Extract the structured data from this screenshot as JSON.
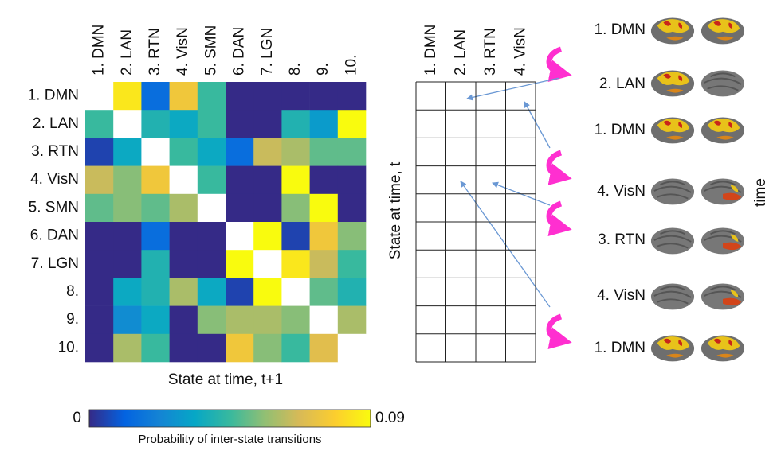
{
  "chart_data": {
    "type": "heatmap",
    "row_labels": [
      "1. DMN",
      "2. LAN",
      "3. RTN",
      "4. VisN",
      "5. SMN",
      "6. DAN",
      "7. LGN",
      "8.",
      "9.",
      "10."
    ],
    "column_labels": [
      "1. DMN",
      "2. LAN",
      "3. RTN",
      "4. VisN",
      "5. SMN",
      "6. DAN",
      "7. LGN",
      "8.",
      "9.",
      "10."
    ],
    "values": [
      [
        null,
        0.085,
        0.015,
        0.075,
        0.045,
        0,
        0,
        0,
        0,
        0
      ],
      [
        0.045,
        null,
        0.04,
        0.035,
        0.045,
        0,
        0,
        0.04,
        0.03,
        0.09
      ],
      [
        0.005,
        0.035,
        null,
        0.045,
        0.035,
        0.015,
        0.065,
        0.06,
        0.05,
        0.05
      ],
      [
        0.065,
        0.055,
        0.075,
        null,
        0.045,
        0,
        0,
        0.09,
        0,
        0
      ],
      [
        0.05,
        0.055,
        0.05,
        0.06,
        null,
        0,
        0,
        0.055,
        0.09,
        0
      ],
      [
        0,
        0,
        0.015,
        0,
        0,
        null,
        0.09,
        0.005,
        0.075,
        0.055
      ],
      [
        0,
        0,
        0.04,
        0,
        0,
        0.09,
        null,
        0.085,
        0.065,
        0.045
      ],
      [
        0,
        0.035,
        0.04,
        0.06,
        0.035,
        0.005,
        0.09,
        null,
        0.05,
        0.04
      ],
      [
        0,
        0.025,
        0.035,
        0,
        0.055,
        0.06,
        0.06,
        0.055,
        null,
        0.06
      ],
      [
        0,
        0.06,
        0.045,
        0,
        0,
        0.075,
        0.055,
        0.045,
        0.07,
        null
      ]
    ],
    "xlabel": "State at time, t+1",
    "zlim": [
      0,
      0.09
    ],
    "zticks": [
      0,
      0.09
    ],
    "colorbar_label": "Probability of inter-state transitions",
    "colormap": "parula"
  },
  "sequence_grid": {
    "column_labels": [
      "1. DMN",
      "2. LAN",
      "3. RTN",
      "4. VisN"
    ],
    "ylabel": "State at time, t"
  },
  "time_series": {
    "states": [
      "1. DMN",
      "2. LAN",
      "1. DMN",
      "4. VisN",
      "3. RTN",
      "4. VisN",
      "1. DMN"
    ],
    "axis_label": "time"
  }
}
